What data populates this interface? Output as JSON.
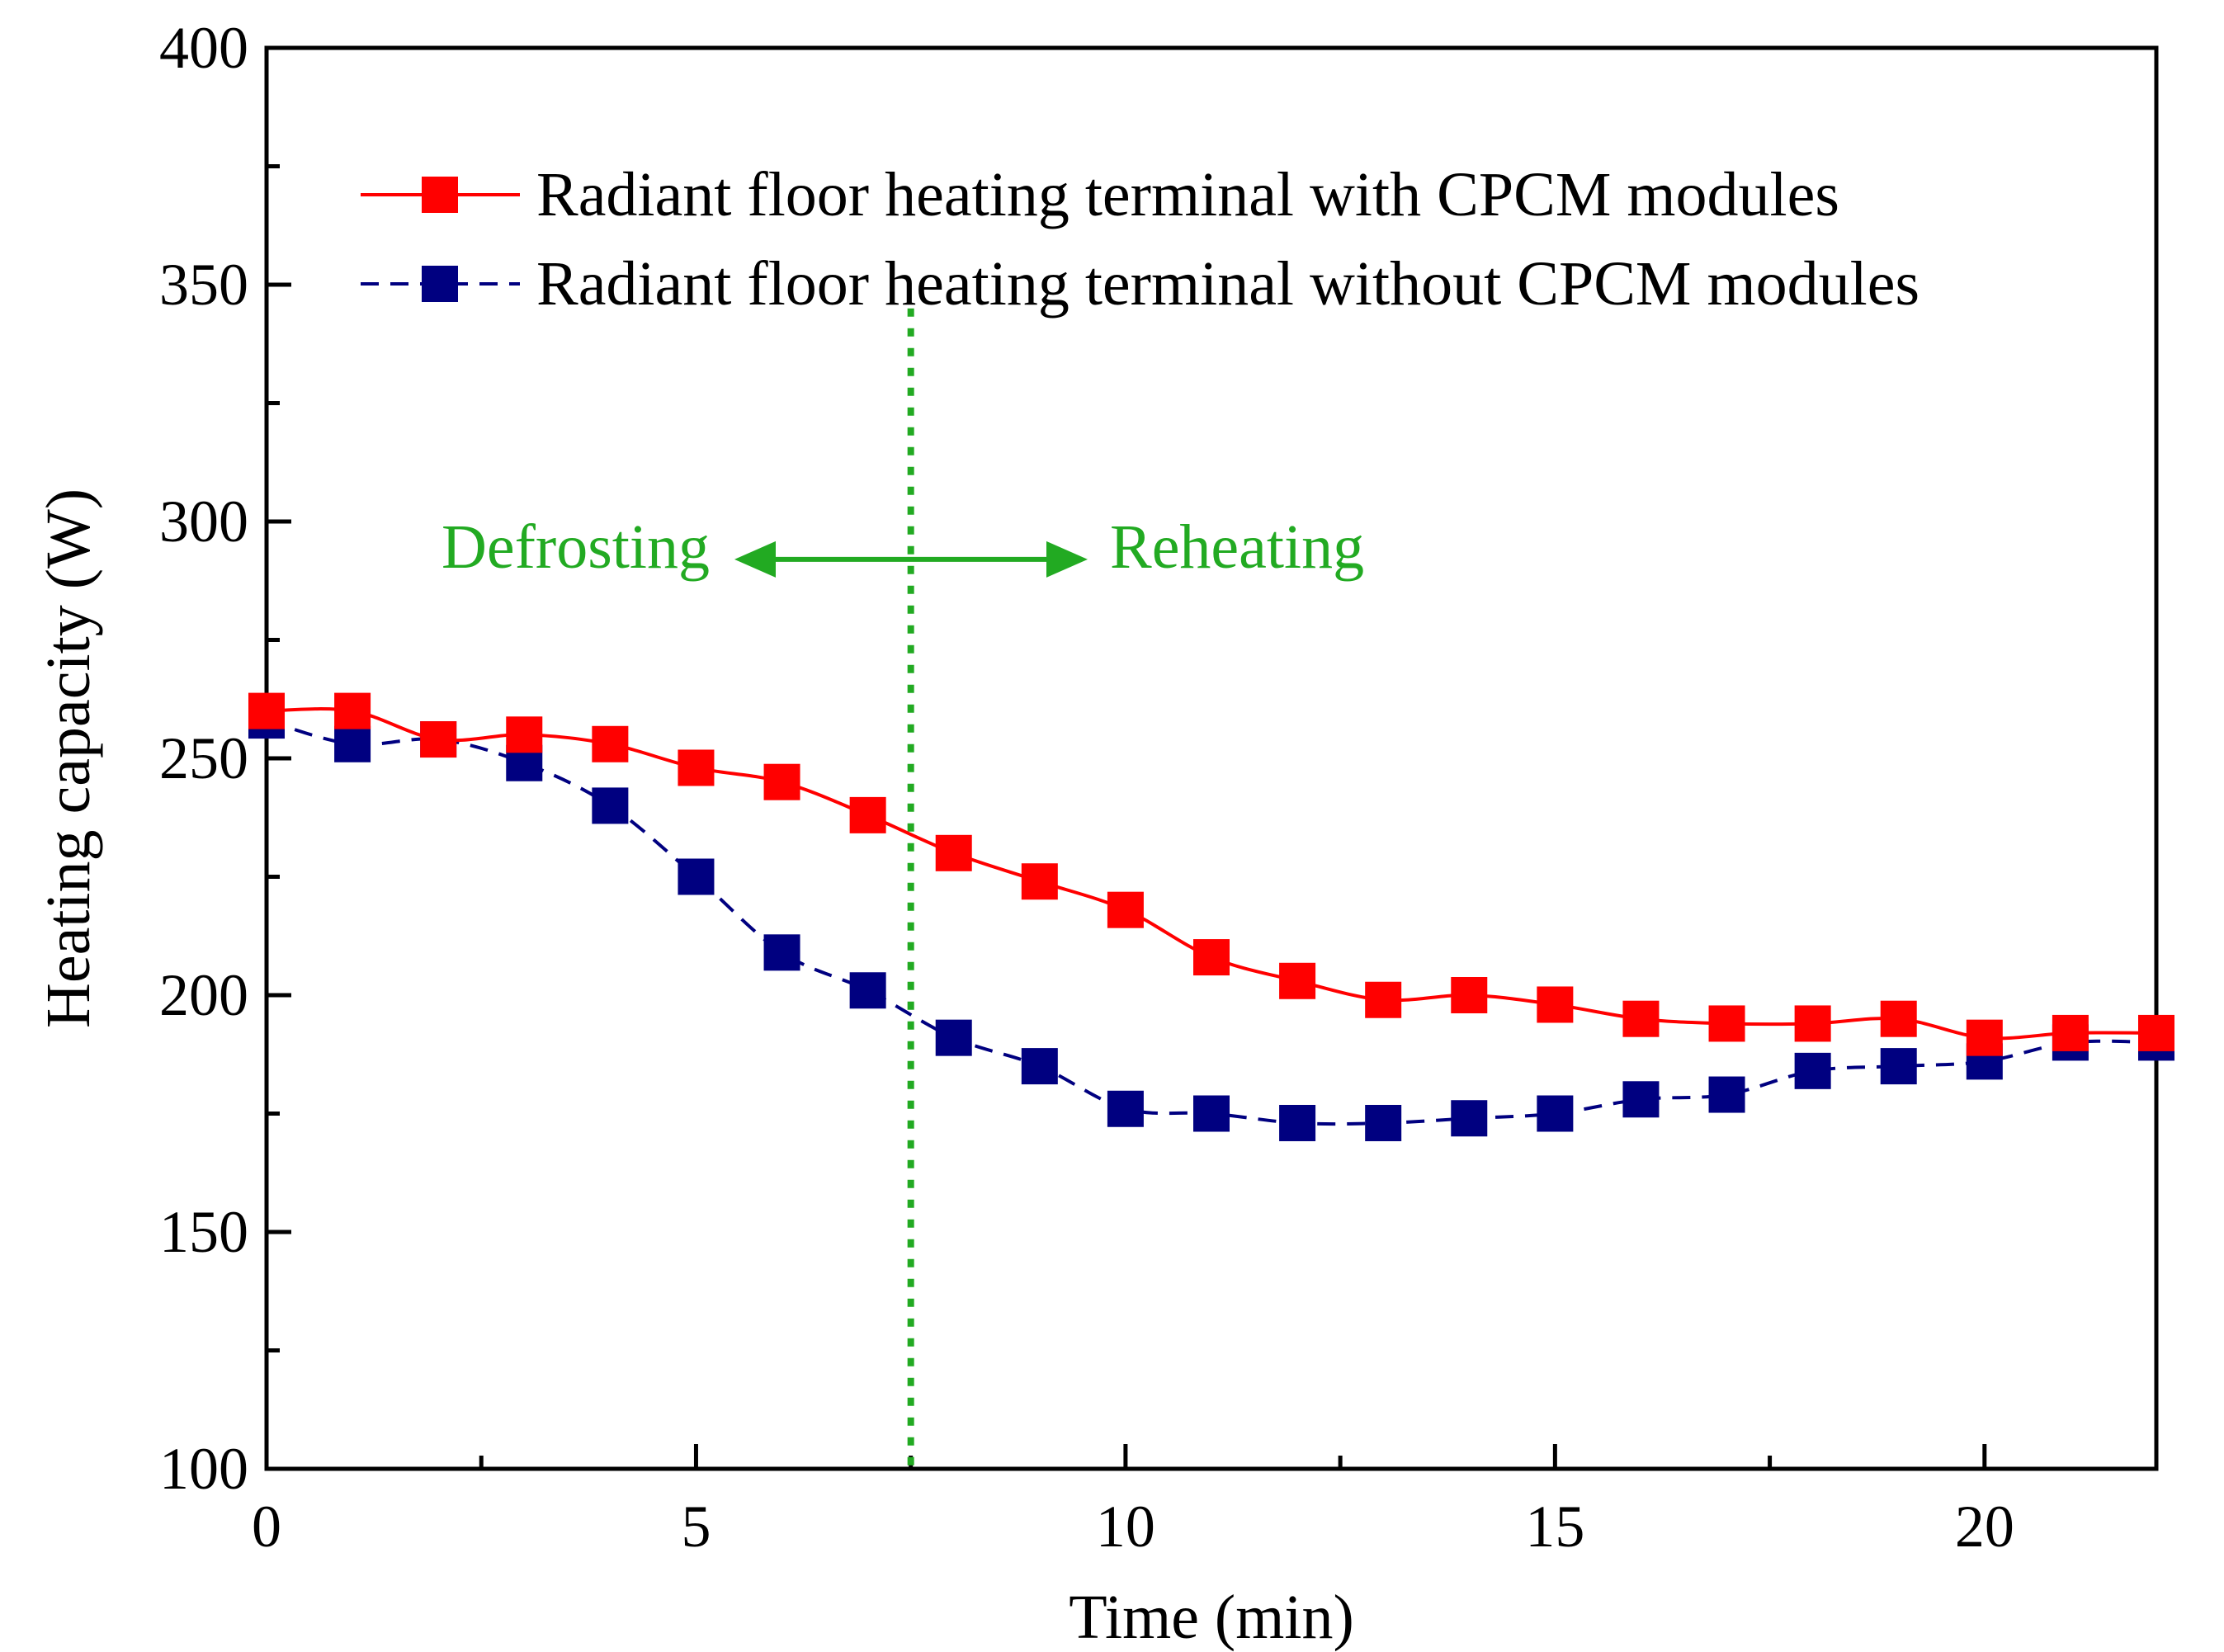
{
  "chart_data": {
    "type": "line",
    "title": "",
    "xlabel": "Time (min)",
    "ylabel": "Heating capacity (W)",
    "xlim": [
      0,
      22
    ],
    "ylim": [
      100,
      400
    ],
    "x_ticks": [
      0,
      5,
      10,
      15,
      20
    ],
    "y_ticks": [
      100,
      150,
      200,
      250,
      300,
      350,
      400
    ],
    "x_tick_labels": [
      "0",
      "5",
      "10",
      "15",
      "20"
    ],
    "y_tick_labels": [
      "100",
      "150",
      "200",
      "250",
      "300",
      "350",
      "400"
    ],
    "grid": false,
    "legend_position": "top",
    "x": [
      0,
      1,
      2,
      3,
      4,
      5,
      6,
      7,
      8,
      9,
      10,
      11,
      12,
      13,
      14,
      15,
      16,
      17,
      18,
      19,
      20,
      21,
      22
    ],
    "series": [
      {
        "name": "Radiant floor heating terminal with CPCM modules",
        "color": "#ff0000",
        "line_style": "solid",
        "marker": "square",
        "values": [
          260,
          260,
          254,
          255,
          253,
          248,
          245,
          238,
          230,
          224,
          218,
          208,
          203,
          199,
          200,
          198,
          195,
          194,
          194,
          195,
          191,
          192,
          192
        ]
      },
      {
        "name": "Radiant floor heating terminal without CPCM modules",
        "color": "#000080",
        "line_style": "dashed",
        "marker": "square",
        "values": [
          258,
          253,
          254,
          249,
          240,
          225,
          209,
          201,
          191,
          185,
          176,
          175,
          173,
          173,
          174,
          175,
          178,
          179,
          184,
          185,
          186,
          190,
          190
        ]
      }
    ],
    "annotations": {
      "divider_x": 7.5,
      "divider_color": "#22aa22",
      "left_label": "Defrosting",
      "right_label": "Reheating",
      "arrow_y": 292,
      "color": "#22aa22"
    }
  }
}
